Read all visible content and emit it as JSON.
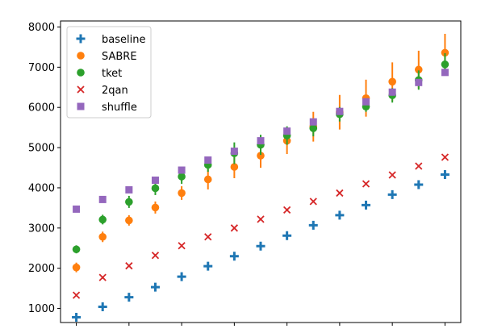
{
  "chart_data": {
    "type": "scatter",
    "title": "",
    "xlabel": "",
    "ylabel": "",
    "x": [
      1,
      2,
      3,
      4,
      5,
      6,
      7,
      8,
      9,
      10,
      11,
      12,
      13,
      14,
      15
    ],
    "xlim": [
      0.4,
      15.6
    ],
    "ylim": [
      650,
      8150
    ],
    "yticks": [
      1000,
      2000,
      3000,
      4000,
      5000,
      6000,
      7000,
      8000
    ],
    "ytick_labels": [
      "1000",
      "2000",
      "3000",
      "4000",
      "5000",
      "6000",
      "7000",
      "8000"
    ],
    "xticks": [
      1,
      3,
      5,
      7,
      9,
      11,
      13,
      15
    ],
    "grid": false,
    "legend_position": "top-left",
    "series": [
      {
        "name": "baseline",
        "marker": "plus",
        "color": "#1f77b4",
        "values": [
          780,
          1040,
          1280,
          1530,
          1790,
          2050,
          2300,
          2550,
          2810,
          3070,
          3320,
          3570,
          3830,
          4080,
          4330
        ],
        "errors": [
          30,
          30,
          40,
          40,
          40,
          40,
          40,
          40,
          50,
          50,
          50,
          50,
          50,
          60,
          60
        ]
      },
      {
        "name": "SABRE",
        "marker": "circle",
        "color": "#ff7f0e",
        "values": [
          2020,
          2780,
          3190,
          3510,
          3870,
          4210,
          4520,
          4800,
          5170,
          5520,
          5880,
          6230,
          6640,
          6940,
          7360
        ],
        "errors": [
          120,
          130,
          130,
          150,
          170,
          250,
          280,
          300,
          330,
          370,
          430,
          460,
          480,
          470,
          470
        ]
      },
      {
        "name": "tket",
        "marker": "circle",
        "color": "#2ca02c",
        "values": [
          2470,
          3210,
          3650,
          3990,
          4280,
          4570,
          4860,
          5070,
          5300,
          5480,
          5830,
          6020,
          6300,
          6680,
          7070
        ],
        "errors": [
          100,
          120,
          150,
          170,
          180,
          170,
          270,
          250,
          230,
          200,
          180,
          130,
          180,
          240,
          280
        ]
      },
      {
        "name": "2qan",
        "marker": "x",
        "color": "#d62728",
        "values": [
          1330,
          1770,
          2060,
          2320,
          2560,
          2780,
          3000,
          3220,
          3450,
          3660,
          3870,
          4100,
          4320,
          4540,
          4760
        ],
        "errors": [
          30,
          30,
          30,
          30,
          30,
          30,
          30,
          30,
          30,
          30,
          30,
          30,
          30,
          30,
          30
        ]
      },
      {
        "name": "shuffle",
        "marker": "square",
        "color": "#9467bd",
        "values": [
          3470,
          3710,
          3950,
          4190,
          4440,
          4690,
          4910,
          5170,
          5410,
          5640,
          5900,
          6140,
          6380,
          6620,
          6870
        ],
        "errors": [
          0,
          0,
          0,
          0,
          0,
          0,
          0,
          0,
          0,
          0,
          0,
          0,
          0,
          0,
          0
        ]
      }
    ]
  }
}
